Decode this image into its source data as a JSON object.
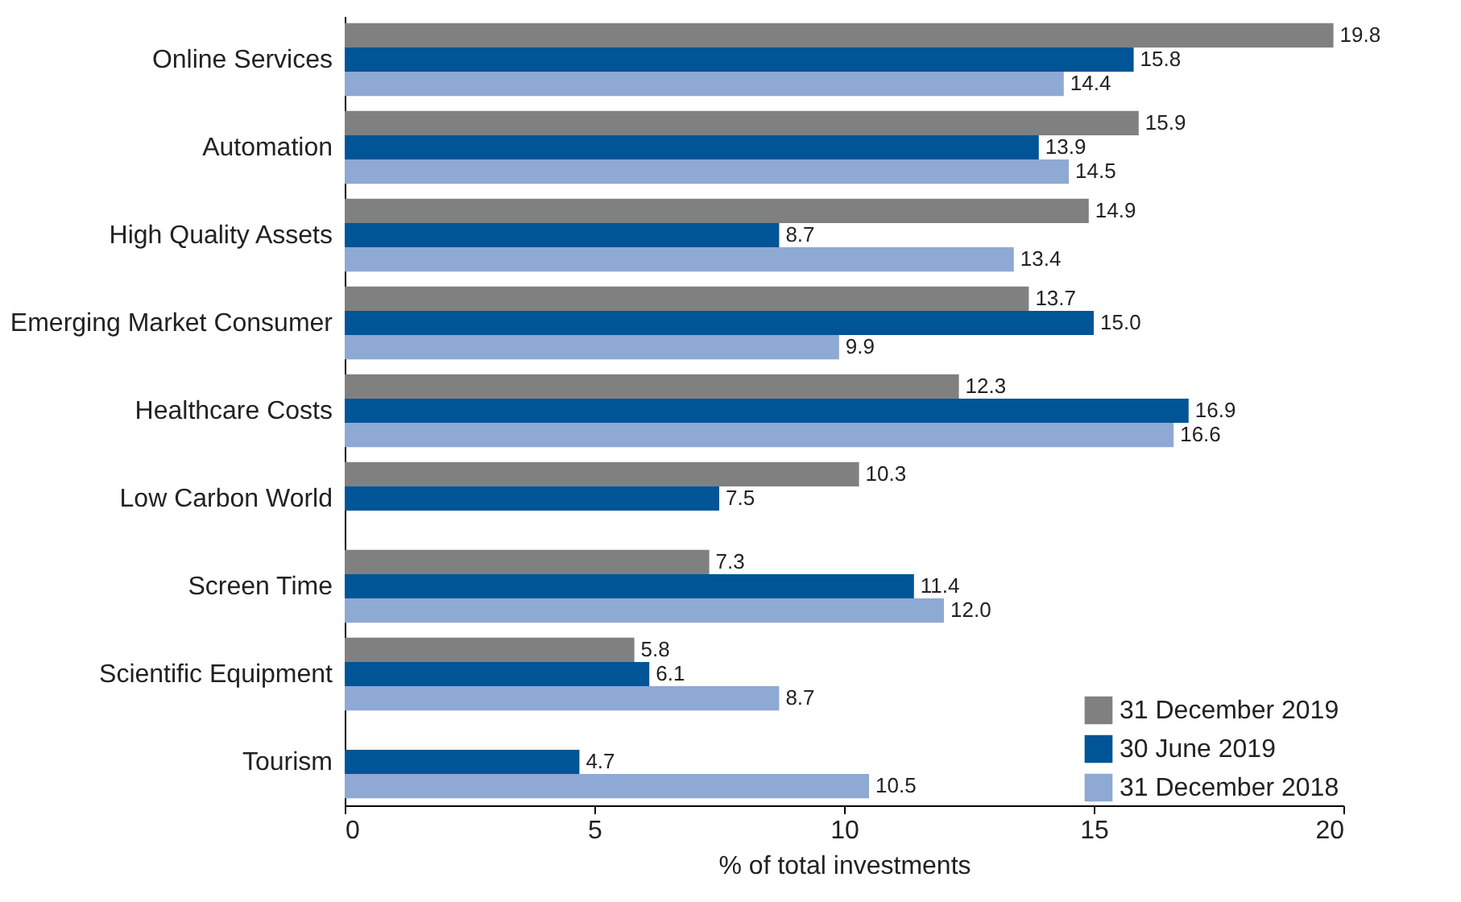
{
  "chart_data": {
    "type": "bar",
    "orientation": "horizontal",
    "xlabel": "% of total investments",
    "categories": [
      "Online Services",
      "Automation",
      "High Quality Assets",
      "Emerging Market Consumer",
      "Healthcare Costs",
      "Low Carbon World",
      "Screen Time",
      "Scientific Equipment",
      "Tourism"
    ],
    "series": [
      {
        "name": "31 December 2019",
        "color": "#808080",
        "values": [
          19.8,
          15.9,
          14.9,
          13.7,
          12.3,
          10.3,
          7.3,
          5.8,
          null
        ],
        "value_labels": [
          "19.8",
          "15.9",
          "14.9",
          "13.7",
          "12.3",
          "10.3",
          "7.3",
          "5.8",
          null
        ]
      },
      {
        "name": "30 June 2019",
        "color": "#005596",
        "values": [
          15.8,
          13.9,
          8.7,
          15.0,
          16.9,
          7.5,
          11.4,
          6.1,
          4.7
        ],
        "value_labels": [
          "15.8",
          "13.9",
          "8.7",
          "15.0",
          "16.9",
          "7.5",
          "11.4",
          "6.1",
          "4.7"
        ]
      },
      {
        "name": "31 December 2018",
        "color": "#8ea9d3",
        "values": [
          14.4,
          14.5,
          13.4,
          9.9,
          16.6,
          null,
          12.0,
          8.7,
          10.5
        ],
        "value_labels": [
          "14.4",
          "14.5",
          "13.4",
          "9.9",
          "16.6",
          null,
          "12.0",
          "8.7",
          "10.5"
        ]
      }
    ],
    "xlim": [
      0,
      20
    ],
    "xticks": [
      0,
      5,
      10,
      15,
      20
    ],
    "grid": false,
    "legend": "bottom right"
  }
}
